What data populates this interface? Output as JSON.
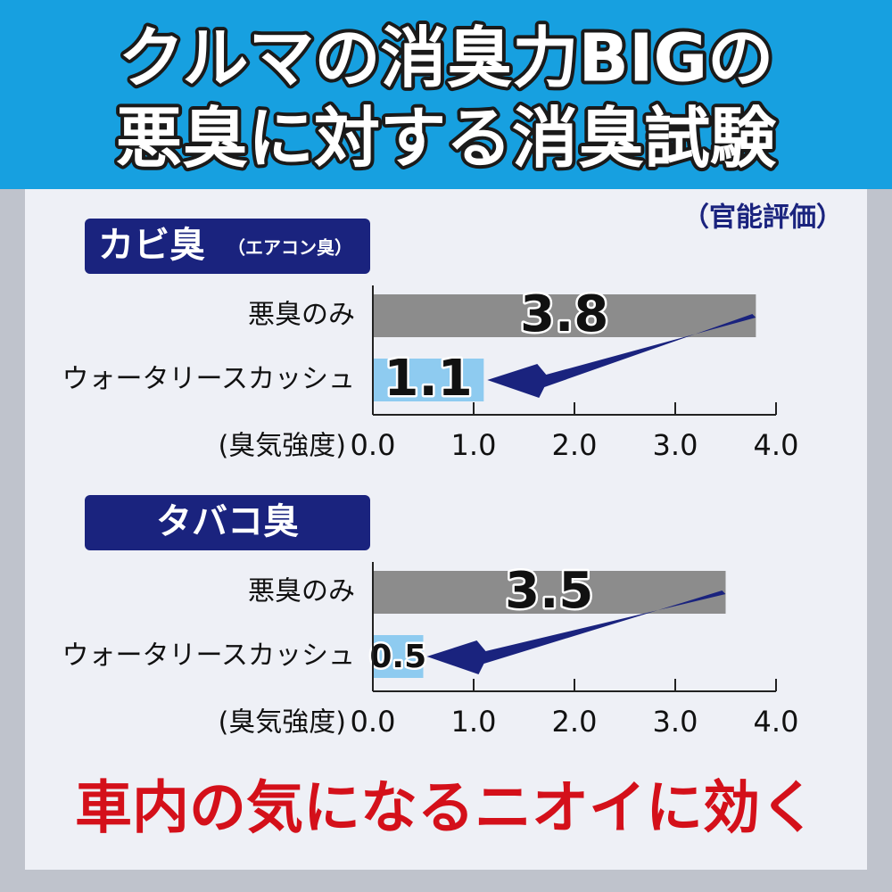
{
  "header": {
    "title_line1": "クルマの消臭力BIGの",
    "title_line2": "悪臭に対する消臭試験",
    "note": "（官能評価）"
  },
  "chart_data": [
    {
      "type": "bar",
      "orientation": "horizontal",
      "title": "カビ臭",
      "subtitle": "（エアコン臭）",
      "categories": [
        "悪臭のみ",
        "ウォータリースカッシュ"
      ],
      "values": [
        3.8,
        1.1
      ],
      "colors": [
        "#8c8c8c",
        "#8ecbf0"
      ],
      "xlabel": "(臭気強度)",
      "xlim": [
        0,
        4
      ],
      "xticks": [
        {
          "value": 0,
          "label": "0.0"
        },
        {
          "value": 1,
          "label": "1.0"
        },
        {
          "value": 2,
          "label": "2.0"
        },
        {
          "value": 3,
          "label": "3.0"
        },
        {
          "value": 4,
          "label": "4.0"
        }
      ]
    },
    {
      "type": "bar",
      "orientation": "horizontal",
      "title": "タバコ臭",
      "categories": [
        "悪臭のみ",
        "ウォータリースカッシュ"
      ],
      "values": [
        3.5,
        0.5
      ],
      "colors": [
        "#8c8c8c",
        "#8ecbf0"
      ],
      "xlabel": "(臭気強度)",
      "xlim": [
        0,
        4
      ],
      "xticks": [
        {
          "value": 0,
          "label": "0.0"
        },
        {
          "value": 1,
          "label": "1.0"
        },
        {
          "value": 2,
          "label": "2.0"
        },
        {
          "value": 3,
          "label": "3.0"
        },
        {
          "value": 4,
          "label": "4.0"
        }
      ]
    }
  ],
  "footer": "車内の気になるニオイに効く"
}
